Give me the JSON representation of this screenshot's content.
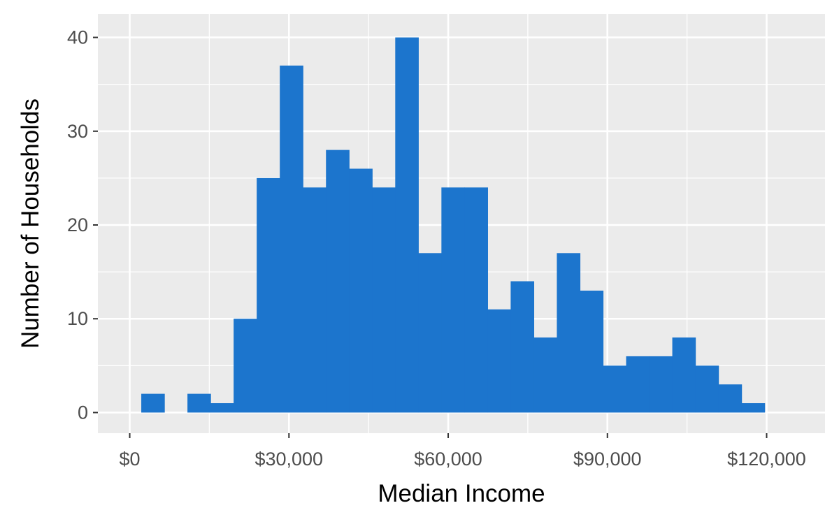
{
  "chart_data": {
    "type": "bar",
    "subtype": "histogram",
    "title": "",
    "xlabel": "Median Income",
    "ylabel": "Number of Households",
    "bin_width": 4350,
    "bins": [
      {
        "x0": 2175,
        "x1": 6525,
        "count": 2
      },
      {
        "x0": 6525,
        "x1": 10875,
        "count": 0
      },
      {
        "x0": 10875,
        "x1": 15225,
        "count": 2
      },
      {
        "x0": 15225,
        "x1": 19575,
        "count": 1
      },
      {
        "x0": 19575,
        "x1": 23925,
        "count": 10
      },
      {
        "x0": 23925,
        "x1": 28275,
        "count": 25
      },
      {
        "x0": 28275,
        "x1": 32625,
        "count": 37
      },
      {
        "x0": 32625,
        "x1": 36975,
        "count": 24
      },
      {
        "x0": 36975,
        "x1": 41325,
        "count": 28
      },
      {
        "x0": 41325,
        "x1": 45675,
        "count": 26
      },
      {
        "x0": 45675,
        "x1": 50025,
        "count": 24
      },
      {
        "x0": 50025,
        "x1": 54375,
        "count": 40
      },
      {
        "x0": 54375,
        "x1": 58725,
        "count": 17
      },
      {
        "x0": 58725,
        "x1": 63075,
        "count": 24
      },
      {
        "x0": 63075,
        "x1": 67425,
        "count": 24
      },
      {
        "x0": 67425,
        "x1": 71775,
        "count": 11
      },
      {
        "x0": 71775,
        "x1": 76125,
        "count": 14
      },
      {
        "x0": 76125,
        "x1": 80475,
        "count": 8
      },
      {
        "x0": 80475,
        "x1": 84825,
        "count": 17
      },
      {
        "x0": 84825,
        "x1": 89175,
        "count": 13
      },
      {
        "x0": 89175,
        "x1": 93525,
        "count": 5
      },
      {
        "x0": 93525,
        "x1": 97875,
        "count": 6
      },
      {
        "x0": 97875,
        "x1": 102225,
        "count": 6
      },
      {
        "x0": 102225,
        "x1": 106575,
        "count": 8
      },
      {
        "x0": 106575,
        "x1": 110925,
        "count": 5
      },
      {
        "x0": 110925,
        "x1": 115275,
        "count": 3
      },
      {
        "x0": 115275,
        "x1": 119625,
        "count": 1
      }
    ],
    "xlim": [
      -6000,
      131000
    ],
    "ylim": [
      -2.2,
      42.5
    ],
    "x_ticks": [
      0,
      30000,
      60000,
      90000,
      120000
    ],
    "x_tick_labels": [
      "$0",
      "$30,000",
      "$60,000",
      "$90,000",
      "$120,000"
    ],
    "x_minor_ticks": [
      15000,
      45000,
      75000,
      105000
    ],
    "y_ticks": [
      0,
      10,
      20,
      30,
      40
    ],
    "y_tick_labels": [
      "0",
      "10",
      "20",
      "30",
      "40"
    ],
    "y_minor_ticks": [
      5,
      15,
      25,
      35
    ],
    "bar_color": "#1C75CD",
    "panel_background": "#EBEBEB",
    "grid": true,
    "legend": "none"
  }
}
